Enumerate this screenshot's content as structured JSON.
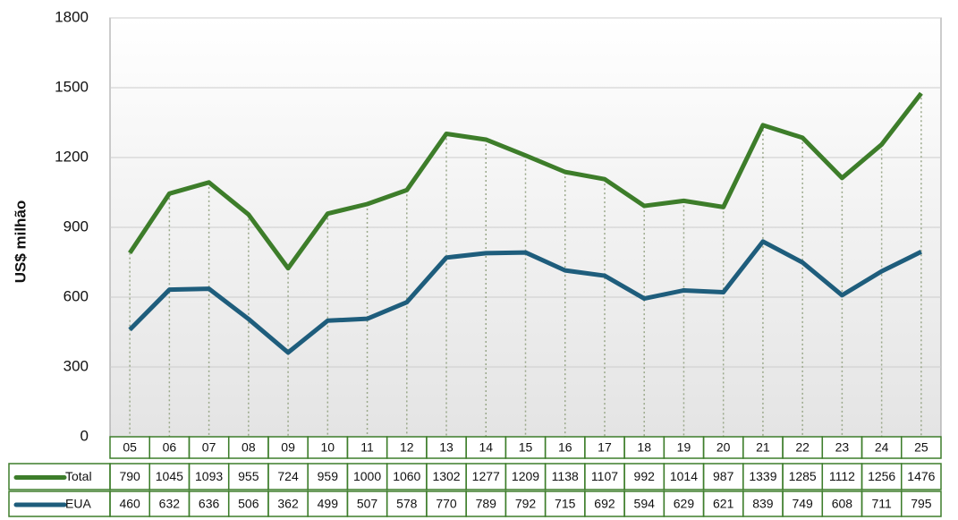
{
  "chart_data": {
    "type": "line",
    "y_label": "US$ milhão",
    "categories": [
      "05",
      "06",
      "07",
      "08",
      "09",
      "10",
      "11",
      "12",
      "13",
      "14",
      "15",
      "16",
      "17",
      "18",
      "19",
      "20",
      "21",
      "22",
      "23",
      "24",
      "25"
    ],
    "series": [
      {
        "name": "Total",
        "color": "#3d7d2a",
        "values": [
          790,
          1045,
          1093,
          955,
          724,
          959,
          1000,
          1060,
          1302,
          1277,
          1209,
          1138,
          1107,
          992,
          1014,
          987,
          1339,
          1285,
          1112,
          1256,
          1476
        ]
      },
      {
        "name": "EUA",
        "color": "#1e5d7c",
        "values": [
          460,
          632,
          636,
          506,
          362,
          499,
          507,
          578,
          770,
          789,
          792,
          715,
          692,
          594,
          629,
          621,
          839,
          749,
          608,
          711,
          795
        ]
      }
    ],
    "ylim": [
      0,
      1800
    ],
    "yticks": [
      0,
      300,
      600,
      900,
      1200,
      1500,
      1800
    ],
    "grid": true
  }
}
